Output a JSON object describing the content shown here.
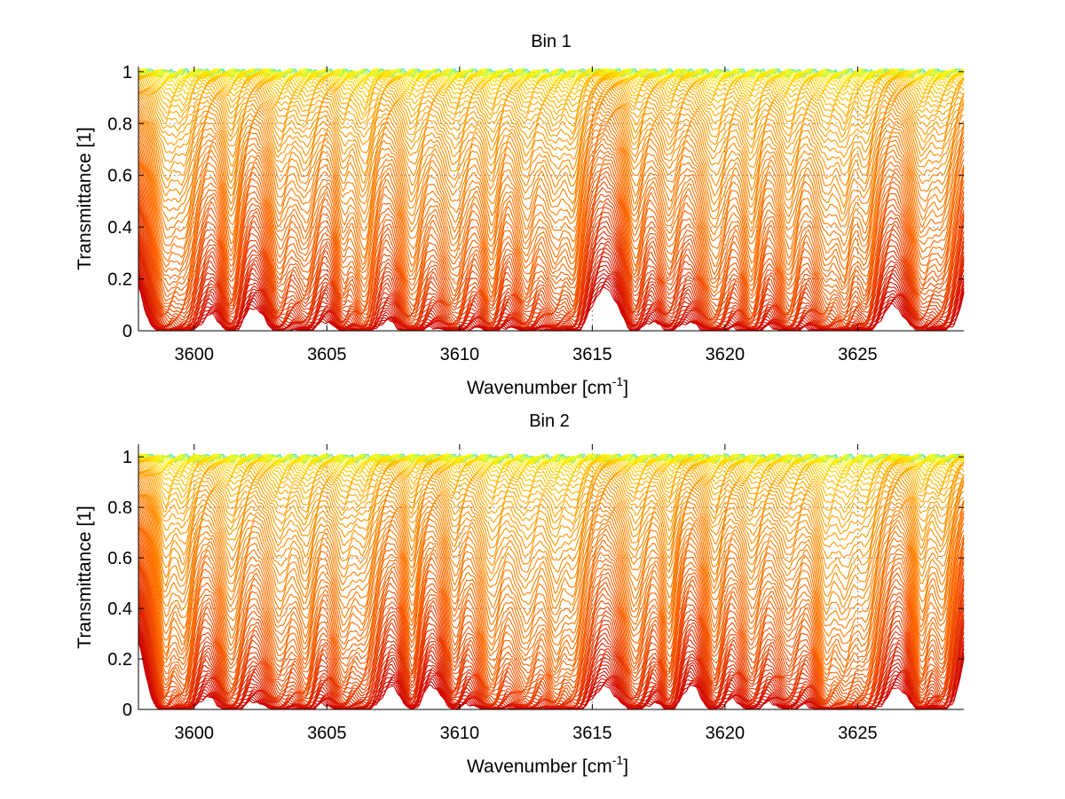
{
  "chart_data": [
    {
      "type": "line",
      "title": "Bin 1",
      "xlabel": "Wavenumber [cm",
      "xlabel_sup": "-1",
      "xlabel_tail": "]",
      "ylabel": "Transmittance [1]",
      "xlim": [
        3597.9,
        3629.0
      ],
      "ylim": [
        0,
        1.02
      ],
      "xticks": [
        3600,
        3605,
        3610,
        3615,
        3620,
        3625
      ],
      "xtick_labels": [
        "3600",
        "3605",
        "3610",
        "3615",
        "3620",
        "3625"
      ],
      "yticks": [
        0,
        0.2,
        0.4,
        0.6,
        0.8,
        1
      ],
      "ytick_labels": [
        "0",
        "0.2",
        "0.4",
        "0.6",
        "0.8",
        "1"
      ],
      "grid": true,
      "colormap": [
        "#cc0000",
        "#ff6600",
        "#ffa500",
        "#ffff00",
        "#33e6cc"
      ],
      "absorption_lines": [
        3598.9,
        3599.6,
        3601.4,
        3603.2,
        3604.2,
        3605.6,
        3606.4,
        3608.2,
        3609.8,
        3611.2,
        3612.5,
        3613.6,
        3614.3,
        3616.6,
        3617.9,
        3619.6,
        3621.0,
        3622.4,
        3623.8,
        3624.5,
        3625.3,
        3627.4,
        3628.2
      ]
    },
    {
      "type": "line",
      "title": "Bin 2",
      "xlabel": "Wavenumber [cm",
      "xlabel_sup": "-1",
      "xlabel_tail": "]",
      "ylabel": "Transmittance [1]",
      "xlim": [
        3597.9,
        3629.0
      ],
      "ylim": [
        0,
        1.05
      ],
      "xticks": [
        3600,
        3605,
        3610,
        3615,
        3620,
        3625
      ],
      "xtick_labels": [
        "3600",
        "3605",
        "3610",
        "3615",
        "3620",
        "3625"
      ],
      "yticks": [
        0,
        0.2,
        0.4,
        0.6,
        0.8,
        1
      ],
      "ytick_labels": [
        "0",
        "0.2",
        "0.4",
        "0.6",
        "0.8",
        "1"
      ],
      "grid": true,
      "colormap": [
        "#cc0000",
        "#ff6600",
        "#ffa500",
        "#ffff00",
        "#33e6cc"
      ],
      "absorption_lines": [
        3598.9,
        3599.6,
        3601.4,
        3603.2,
        3604.2,
        3605.6,
        3606.4,
        3608.2,
        3609.8,
        3611.2,
        3612.5,
        3613.6,
        3614.3,
        3616.6,
        3617.9,
        3619.6,
        3621.0,
        3622.4,
        3623.8,
        3624.5,
        3625.3,
        3627.4,
        3628.2
      ]
    }
  ]
}
